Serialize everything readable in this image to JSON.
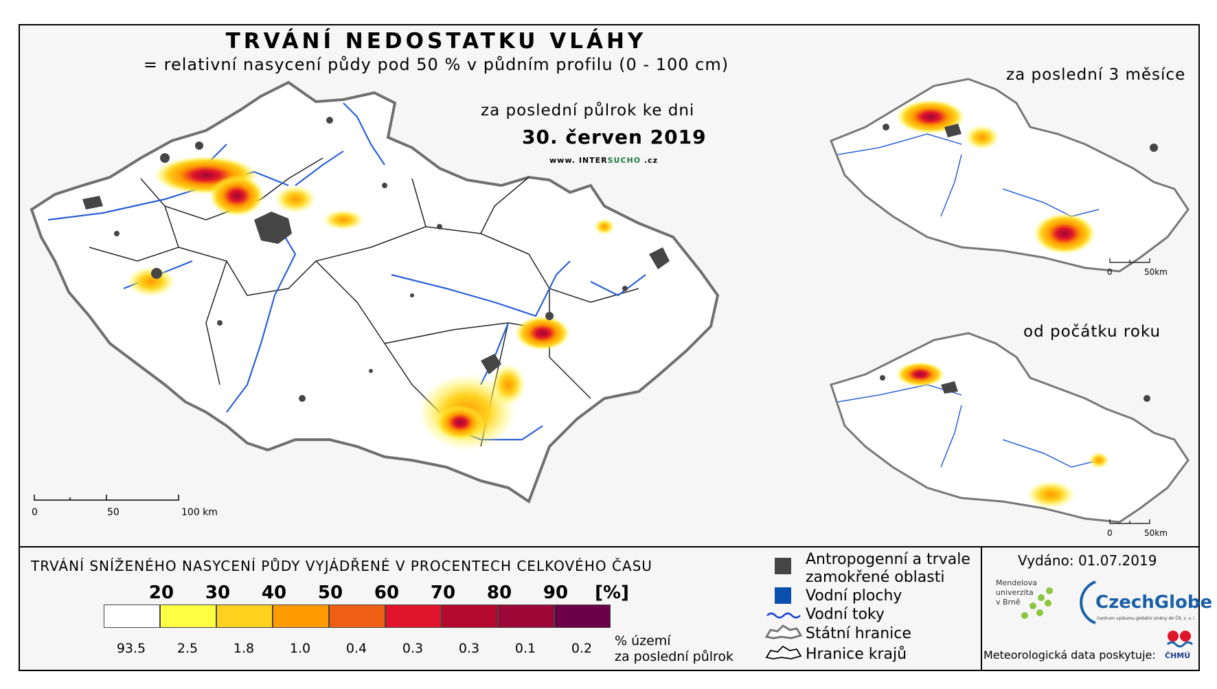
{
  "title": "TRVÁNÍ NEDOSTATKU VLÁHY",
  "subtitle": "= relativní nasycení půdy pod 50 % v půdním profilu (0 - 100 cm)",
  "period_label": "za poslední půlrok ke dni",
  "date": "30. červen 2019",
  "website": {
    "prefix": "www.",
    "name_a": "INTER",
    "name_b": "SUCHO",
    "suffix": ".cz"
  },
  "main_scale": {
    "l0": "0",
    "l1": "50",
    "l2": "100 km"
  },
  "insets": [
    {
      "label": "za poslední 3 měsíce",
      "scale_0": "0",
      "scale_1": "50km"
    },
    {
      "label": "od počátku roku",
      "scale_0": "0",
      "scale_1": "50km"
    }
  ],
  "legend": {
    "title": "TRVÁNÍ SNÍŽENÉHO NASYCENÍ PŮDY VYJÁDŘENÉ V PROCENTECH CELKOVÉHO ČASU",
    "classes": [
      "20",
      "30",
      "40",
      "50",
      "60",
      "70",
      "80",
      "90",
      "[%]"
    ],
    "colors": [
      "#ffffff",
      "#ffff44",
      "#ffd21f",
      "#ff9a00",
      "#ef5f14",
      "#e0142a",
      "#b50a2d",
      "#9c0738",
      "#6b0047"
    ],
    "percentages": [
      "93.5",
      "2.5",
      "1.8",
      "1.0",
      "0.4",
      "0.3",
      "0.3",
      "0.1",
      "0.2"
    ],
    "pct_caption_1": "% území",
    "pct_caption_2": "za poslední půlrok"
  },
  "map_legend": {
    "anthropogenic_1": "Antropogenní a trvale",
    "anthropogenic_2": "zamokřené oblasti",
    "water_bodies": "Vodní plochy",
    "rivers": "Vodní toky",
    "state_border": "Státní hranice",
    "regional_border": "Hranice krajů"
  },
  "issued": "Vydáno: 01.07.2019",
  "mendel_1": "Mendelova",
  "mendel_2": "univerzita",
  "mendel_3": "v Brně",
  "czechglobe": "CzechGlobe",
  "czechglobe_sub": "Centrum výzkumu globální změny AV ČR, v. v. i.",
  "meteo_label": "Meteorologická data poskytuje:",
  "chmu": "ČHMÚ",
  "colors": {
    "anthropogenic": "#454545",
    "water": "#0b4fae",
    "river": "#2a5fd6"
  }
}
